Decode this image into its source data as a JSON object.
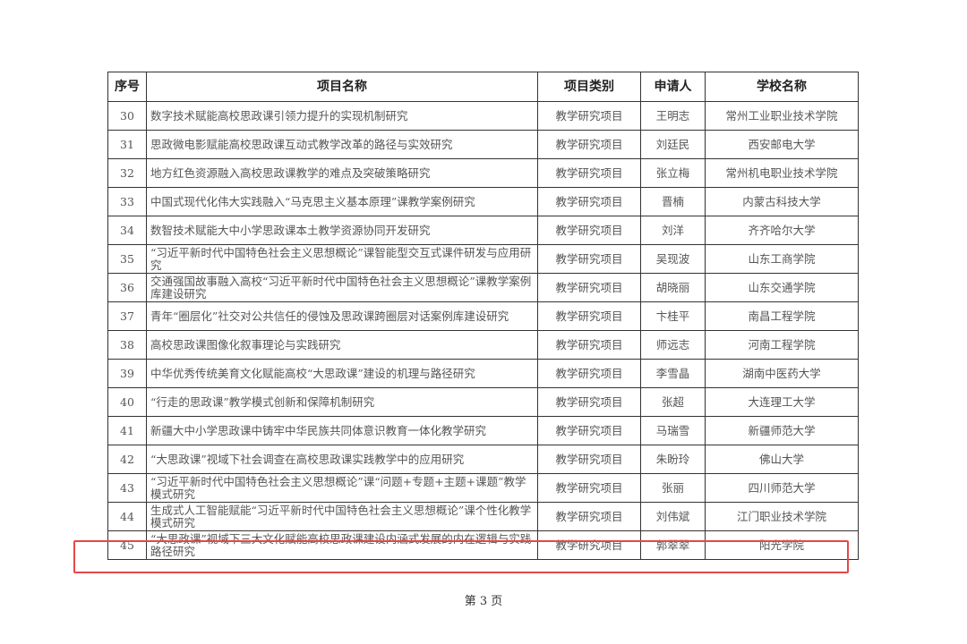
{
  "headers": [
    "序号",
    "项目名称",
    "项目类别",
    "申请人",
    "学校名称"
  ],
  "rows": [
    {
      "no": "30",
      "name": "数字技术赋能高校思政课引领力提升的实现机制研究",
      "category": "教学研究项目",
      "applicant": "王明志",
      "school": "常州工业职业技术学院"
    },
    {
      "no": "31",
      "name": "思政微电影赋能高校思政课互动式教学改革的路径与实效研究",
      "category": "教学研究项目",
      "applicant": "刘廷民",
      "school": "西安邮电大学"
    },
    {
      "no": "32",
      "name": "地方红色资源融入高校思政课教学的难点及突破策略研究",
      "category": "教学研究项目",
      "applicant": "张立梅",
      "school": "常州机电职业技术学院"
    },
    {
      "no": "33",
      "name": "中国式现代化伟大实践融入“马克思主义基本原理”课教学案例研究",
      "category": "教学研究项目",
      "applicant": "晋楠",
      "school": "内蒙古科技大学"
    },
    {
      "no": "34",
      "name": "数智技术赋能大中小学思政课本土教学资源协同开发研究",
      "category": "教学研究项目",
      "applicant": "刘洋",
      "school": "齐齐哈尔大学"
    },
    {
      "no": "35",
      "name": "“习近平新时代中国特色社会主义思想概论”课智能型交互式课件研发与应用研究",
      "category": "教学研究项目",
      "applicant": "吴现波",
      "school": "山东工商学院"
    },
    {
      "no": "36",
      "name": "交通强国故事融入高校“习近平新时代中国特色社会主义思想概论”课教学案例库建设研究",
      "category": "教学研究项目",
      "applicant": "胡晓丽",
      "school": "山东交通学院"
    },
    {
      "no": "37",
      "name": "青年“圈层化”社交对公共信任的侵蚀及思政课跨圈层对话案例库建设研究",
      "category": "教学研究项目",
      "applicant": "卞桂平",
      "school": "南昌工程学院"
    },
    {
      "no": "38",
      "name": "高校思政课图像化叙事理论与实践研究",
      "category": "教学研究项目",
      "applicant": "师远志",
      "school": "河南工程学院"
    },
    {
      "no": "39",
      "name": "中华优秀传统美育文化赋能高校“大思政课”建设的机理与路径研究",
      "category": "教学研究项目",
      "applicant": "李雪晶",
      "school": "湖南中医药大学"
    },
    {
      "no": "40",
      "name": "“行走的思政课”教学模式创新和保障机制研究",
      "category": "教学研究项目",
      "applicant": "张超",
      "school": "大连理工大学"
    },
    {
      "no": "41",
      "name": "新疆大中小学思政课中铸牢中华民族共同体意识教育一体化教学研究",
      "category": "教学研究项目",
      "applicant": "马瑞雪",
      "school": "新疆师范大学"
    },
    {
      "no": "42",
      "name": "“大思政课”视域下社会调查在高校思政课实践教学中的应用研究",
      "category": "教学研究项目",
      "applicant": "朱盼玲",
      "school": "佛山大学"
    },
    {
      "no": "43",
      "name": "“习近平新时代中国特色社会主义思想概论”课“问题+专题+主题+课题”教学模式研究",
      "category": "教学研究项目",
      "applicant": "张丽",
      "school": "四川师范大学"
    },
    {
      "no": "44",
      "name": "生成式人工智能赋能“习近平新时代中国特色社会主义思想概论”课个性化教学模式研究",
      "category": "教学研究项目",
      "applicant": "刘伟斌",
      "school": "江门职业技术学院"
    },
    {
      "no": "45",
      "name": "“大思政课”视域下三大文化赋能高校思政课建设内涵式发展的内在逻辑与实践路径研究",
      "category": "教学研究项目",
      "applicant": "郭翠翠",
      "school": "阳光学院"
    }
  ],
  "highlight_color": "#e8464a",
  "footer": "第 3 页"
}
